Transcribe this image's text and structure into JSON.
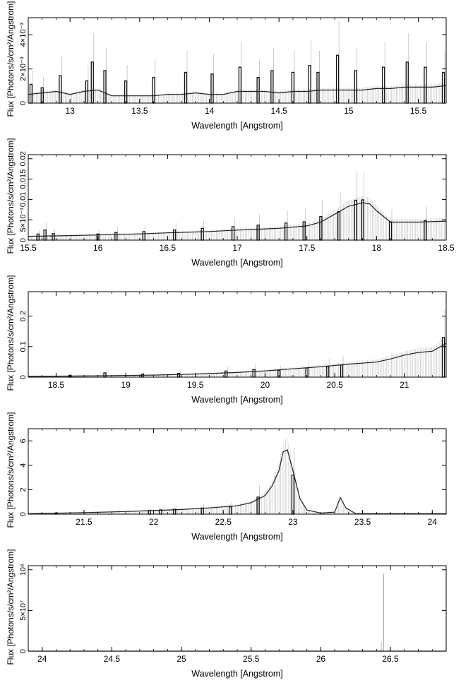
{
  "chart_data": [
    {
      "type": "line",
      "xlabel": "Wavelength [Angstrom]",
      "ylabel": "Flux [Photons/s/cm²/Angstrom]",
      "xlim": [
        12.7,
        15.7
      ],
      "ylim": [
        0,
        0.005
      ],
      "xticks": [
        13,
        13.5,
        14,
        14.5,
        15,
        15.5
      ],
      "xtick_labels": [
        "13",
        "13.5",
        "14",
        "14.5",
        "15",
        "15.5"
      ],
      "yticks": [
        0,
        0.002,
        0.004
      ],
      "ytick_labels": [
        "0",
        "2×10⁻³",
        "4×10⁻³"
      ],
      "series": [
        {
          "x": [
            12.7,
            12.8,
            12.9,
            13.0,
            13.1,
            13.2,
            13.3,
            13.4,
            13.5,
            13.6,
            13.7,
            13.8,
            13.9,
            14.0,
            14.1,
            14.2,
            14.3,
            14.4,
            14.5,
            14.6,
            14.7,
            14.8,
            14.9,
            15.0,
            15.1,
            15.2,
            15.3,
            15.4,
            15.5,
            15.6,
            15.7
          ],
          "y": [
            0.0006,
            0.0007,
            0.0008,
            0.0006,
            0.0008,
            0.0009,
            0.0005,
            0.0005,
            0.0005,
            0.0005,
            0.0006,
            0.0006,
            0.0007,
            0.0006,
            0.0006,
            0.0008,
            0.0008,
            0.0008,
            0.0007,
            0.0008,
            0.0008,
            0.0009,
            0.0009,
            0.0009,
            0.0009,
            0.001,
            0.001,
            0.0011,
            0.0011,
            0.0011,
            0.0012
          ]
        },
        {
          "x": [
            12.72,
            12.8,
            12.93,
            13.12,
            13.16,
            13.25,
            13.4,
            13.6,
            13.83,
            14.02,
            14.22,
            14.35,
            14.45,
            14.6,
            14.72,
            14.78,
            14.92,
            15.05,
            15.25,
            15.42,
            15.55,
            15.68
          ],
          "y": [
            0.0011,
            0.0009,
            0.0016,
            0.0013,
            0.0024,
            0.0019,
            0.0013,
            0.0015,
            0.0018,
            0.0017,
            0.0021,
            0.0015,
            0.0019,
            0.0018,
            0.0022,
            0.0018,
            0.0028,
            0.0019,
            0.0021,
            0.0024,
            0.0021,
            0.0018
          ]
        }
      ]
    },
    {
      "type": "line",
      "xlabel": "Wavelength [Angstrom]",
      "ylabel": "Flux [Photons/s/cm²/Angstrom]",
      "xlim": [
        15.5,
        18.5
      ],
      "ylim": [
        0,
        0.021
      ],
      "xticks": [
        15.5,
        16,
        16.5,
        17,
        17.5,
        18,
        18.5
      ],
      "xtick_labels": [
        "15.5",
        "16",
        "16.5",
        "17",
        "17.5",
        "18",
        "18.5"
      ],
      "yticks": [
        0,
        0.005,
        0.01,
        0.015,
        0.02
      ],
      "ytick_labels": [
        "0",
        "5×10⁻³",
        "0.01",
        "0.015",
        "0.02"
      ],
      "series": [
        {
          "x": [
            15.5,
            15.8,
            16.0,
            16.3,
            16.5,
            16.8,
            17.0,
            17.3,
            17.5,
            17.6,
            17.7,
            17.8,
            17.9,
            17.95,
            18.0,
            18.1,
            18.3,
            18.5
          ],
          "y": [
            0.0011,
            0.0013,
            0.0015,
            0.0018,
            0.0021,
            0.0025,
            0.0029,
            0.0034,
            0.0041,
            0.0052,
            0.0075,
            0.0098,
            0.0108,
            0.0105,
            0.0085,
            0.0052,
            0.0052,
            0.0055
          ]
        },
        {
          "x": [
            15.57,
            15.62,
            15.68,
            16.0,
            16.13,
            16.33,
            16.55,
            16.75,
            16.97,
            17.15,
            17.35,
            17.48,
            17.6,
            17.73,
            17.85,
            17.9,
            18.1,
            18.35
          ],
          "y": [
            0.0015,
            0.0025,
            0.0016,
            0.0015,
            0.0019,
            0.0021,
            0.0025,
            0.0029,
            0.0033,
            0.0037,
            0.0042,
            0.0045,
            0.0058,
            0.007,
            0.0098,
            0.0099,
            0.0045,
            0.0048
          ]
        }
      ]
    },
    {
      "type": "line",
      "xlabel": "Wavelength [Angstrom]",
      "ylabel": "Flux [Photons/s/cm²/Angstrom]",
      "xlim": [
        18.3,
        21.3
      ],
      "ylim": [
        0,
        0.28
      ],
      "xticks": [
        18.5,
        19,
        19.5,
        20,
        20.5,
        21
      ],
      "xtick_labels": [
        "18.5",
        "19",
        "19.5",
        "20",
        "20.5",
        "21"
      ],
      "yticks": [
        0,
        0.1,
        0.2
      ],
      "ytick_labels": [
        "0",
        "0.1",
        "0.2"
      ],
      "series": [
        {
          "x": [
            18.3,
            18.6,
            18.9,
            19.2,
            19.5,
            19.8,
            20.0,
            20.2,
            20.4,
            20.6,
            20.8,
            20.9,
            21.0,
            21.1,
            21.2,
            21.3
          ],
          "y": [
            0.003,
            0.004,
            0.006,
            0.008,
            0.012,
            0.018,
            0.024,
            0.032,
            0.04,
            0.05,
            0.058,
            0.07,
            0.085,
            0.095,
            0.1,
            0.13
          ]
        },
        {
          "x": [
            18.6,
            18.85,
            19.12,
            19.38,
            19.72,
            19.92,
            20.1,
            20.3,
            20.45,
            20.55,
            21.28
          ],
          "y": [
            0.006,
            0.014,
            0.01,
            0.012,
            0.02,
            0.025,
            0.022,
            0.03,
            0.035,
            0.04,
            0.13
          ]
        }
      ]
    },
    {
      "type": "line",
      "xlabel": "Wavelength [Angstrom]",
      "ylabel": "Flux [Photons/s/cm²/Angstrom]",
      "xlim": [
        21.1,
        24.1
      ],
      "ylim": [
        0,
        7
      ],
      "xticks": [
        21.5,
        22,
        22.5,
        23,
        23.5,
        24
      ],
      "xtick_labels": [
        "21.5",
        "22",
        "22.5",
        "23",
        "23.5",
        "24"
      ],
      "yticks": [
        0,
        2,
        4,
        6
      ],
      "ytick_labels": [
        "0",
        "2",
        "4",
        "6"
      ],
      "series": [
        {
          "x": [
            21.1,
            21.5,
            21.8,
            22.0,
            22.2,
            22.4,
            22.6,
            22.7,
            22.8,
            22.85,
            22.9,
            22.93,
            22.96,
            23.0,
            23.05,
            23.1,
            23.2,
            23.3,
            23.34,
            23.38,
            23.45,
            23.6,
            24.1
          ],
          "y": [
            0.05,
            0.15,
            0.25,
            0.35,
            0.45,
            0.6,
            0.8,
            1.1,
            1.8,
            2.7,
            4.2,
            6.0,
            6.2,
            4.2,
            1.5,
            0.4,
            0.1,
            0.2,
            1.6,
            0.6,
            0.05,
            0.05,
            0.05
          ]
        },
        {
          "x": [
            21.3,
            21.97,
            22.05,
            22.15,
            22.35,
            22.55,
            22.75,
            23.0
          ],
          "y": [
            0.1,
            0.3,
            0.35,
            0.4,
            0.5,
            0.6,
            1.4,
            3.2
          ]
        }
      ]
    },
    {
      "type": "line",
      "xlabel": "Wavelength [Angstrom]",
      "ylabel": "Flux [Photons/s/cm²/Angstrom]",
      "xlim": [
        23.9,
        26.9
      ],
      "ylim": [
        0,
        105000000
      ],
      "xticks": [
        24,
        24.5,
        25,
        25.5,
        26,
        26.5
      ],
      "xtick_labels": [
        "24",
        "24.5",
        "25",
        "25.5",
        "26",
        "26.5"
      ],
      "yticks": [
        0,
        50000000,
        100000000
      ],
      "ytick_labels": [
        "0",
        "5×10⁷",
        "10⁸"
      ],
      "series": [
        {
          "x": [
            23.9,
            26.4,
            26.44,
            26.45,
            26.46,
            26.9
          ],
          "y": [
            0,
            0,
            1500000,
            95000000,
            0,
            0
          ]
        }
      ]
    }
  ]
}
